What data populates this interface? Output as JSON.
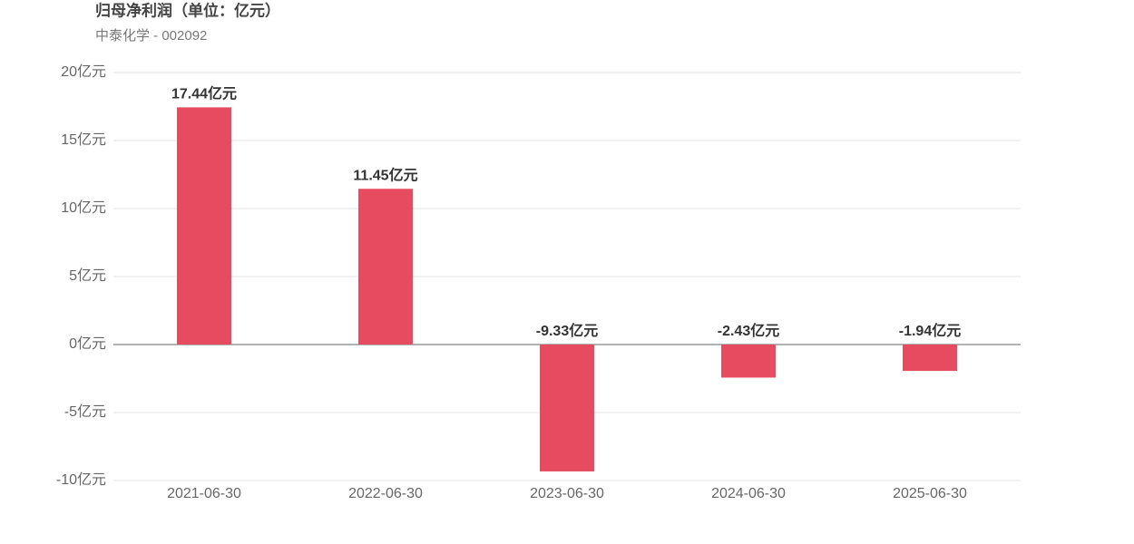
{
  "chart_data": {
    "type": "bar",
    "title": "归母净利润（单位：亿元）",
    "subtitle": "中泰化学 - 002092",
    "categories": [
      "2021-06-30",
      "2022-06-30",
      "2023-06-30",
      "2024-06-30",
      "2025-06-30"
    ],
    "values": [
      17.44,
      11.45,
      -9.33,
      -2.43,
      -1.94
    ],
    "value_labels": [
      "17.44亿元",
      "11.45亿元",
      "-9.33亿元",
      "-2.43亿元",
      "-1.94亿元"
    ],
    "color": "#e64b5f",
    "ylim": [
      -10,
      20
    ],
    "yticks": [
      {
        "value": -10,
        "label": "-10亿元"
      },
      {
        "value": -5,
        "label": "-5亿元"
      },
      {
        "value": 0,
        "label": "0亿元"
      },
      {
        "value": 5,
        "label": "5亿元"
      },
      {
        "value": 10,
        "label": "10亿元"
      },
      {
        "value": 15,
        "label": "15亿元"
      },
      {
        "value": 20,
        "label": "20亿元"
      }
    ],
    "grid": true
  }
}
